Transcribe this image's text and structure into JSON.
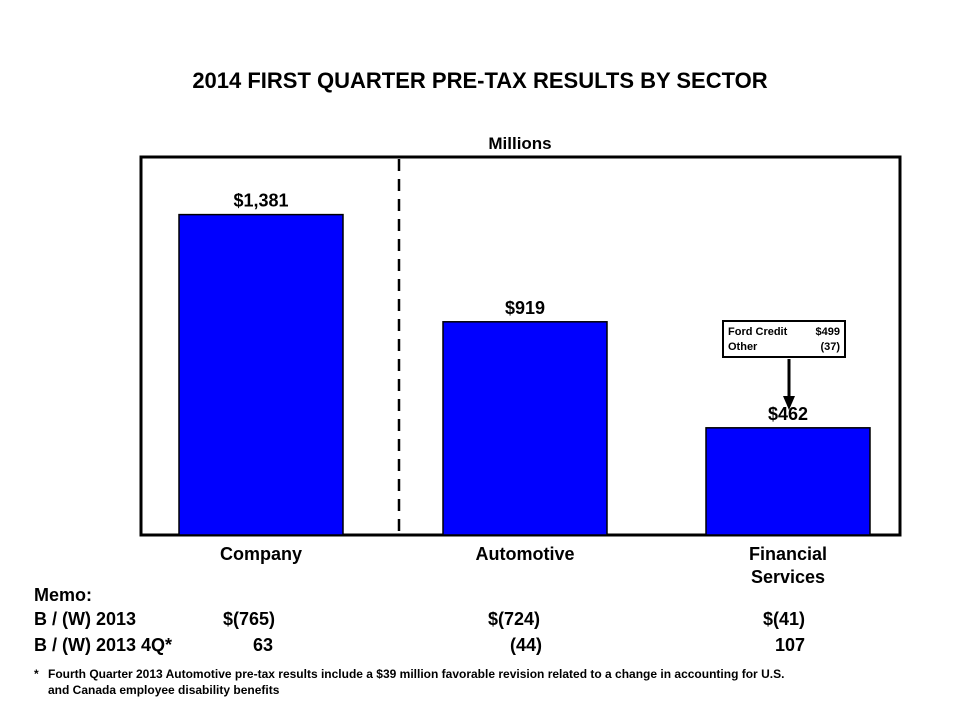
{
  "chart_data": {
    "type": "bar",
    "title": "2014 FIRST QUARTER PRE-TAX RESULTS BY SECTOR",
    "unit_label": "Millions",
    "categories": [
      "Company",
      "Automotive",
      "Financial Services"
    ],
    "category_lines": [
      [
        "Company"
      ],
      [
        "Automotive"
      ],
      [
        "Financial",
        "Services"
      ]
    ],
    "values": [
      1381,
      919,
      462
    ],
    "value_labels": [
      "$1,381",
      "$919",
      "$462"
    ],
    "ylim": [
      0,
      1700
    ],
    "bar_color": "#0000ff",
    "callout": {
      "rows": [
        {
          "label": "Ford Credit",
          "value": "$499"
        },
        {
          "label": "Other",
          "value": "(37)"
        }
      ]
    }
  },
  "memo": {
    "heading": "Memo:",
    "rows": [
      {
        "label": "B / (W) 2013",
        "values": [
          "$(765)",
          "$(724)",
          "$(41)"
        ]
      },
      {
        "label": "B / (W) 2013 4Q*",
        "values": [
          "63",
          "(44)",
          "107"
        ]
      }
    ]
  },
  "footnote": {
    "marker": "*",
    "line1": "Fourth Quarter 2013 Automotive pre-tax results include a $39 million favorable revision related to a change in accounting for U.S.",
    "line2": "and Canada employee disability benefits"
  }
}
